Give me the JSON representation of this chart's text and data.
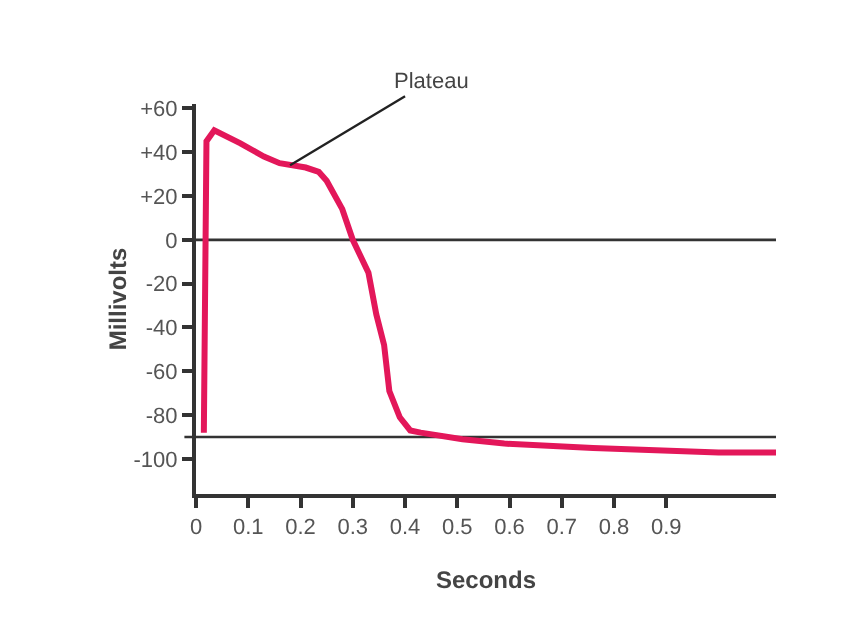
{
  "chart_data": {
    "type": "line",
    "xlabel": "Seconds",
    "ylabel": "Millivolts",
    "x": [
      0.015,
      0.02,
      0.035,
      0.085,
      0.13,
      0.16,
      0.21,
      0.235,
      0.25,
      0.28,
      0.3,
      0.33,
      0.345,
      0.36,
      0.37,
      0.39,
      0.41,
      0.43,
      0.51,
      0.59,
      0.76,
      1.0,
      1.11
    ],
    "series": [
      {
        "color": "#e3175a",
        "values": [
          -88,
          45,
          50,
          44,
          38,
          35,
          33,
          31,
          27,
          14,
          0,
          -15,
          -34,
          -48,
          -69,
          -81,
          -87,
          -88,
          -91,
          -93,
          -95,
          -97,
          -97
        ]
      }
    ],
    "xlim": [
      0,
      1.11
    ],
    "xticks": [
      0,
      0.1,
      0.2,
      0.3,
      0.4,
      0.5,
      0.6,
      0.7,
      0.8,
      0.9
    ],
    "ylim": [
      -116,
      62
    ],
    "yticks": [
      {
        "value": 60,
        "label": "+60"
      },
      {
        "value": 40,
        "label": "+40"
      },
      {
        "value": 20,
        "label": "+20"
      },
      0,
      -20,
      -40,
      -60,
      -80,
      -100
    ],
    "ref_lines": [
      {
        "axis": "y",
        "value": 0,
        "color": "#333333"
      },
      {
        "axis": "y",
        "value": -90,
        "color": "#333333"
      }
    ],
    "annotations": [
      {
        "text": "Plateau",
        "x": 0.18,
        "y": 34
      }
    ],
    "grid": false,
    "marker": "none",
    "line_style": "solid"
  }
}
